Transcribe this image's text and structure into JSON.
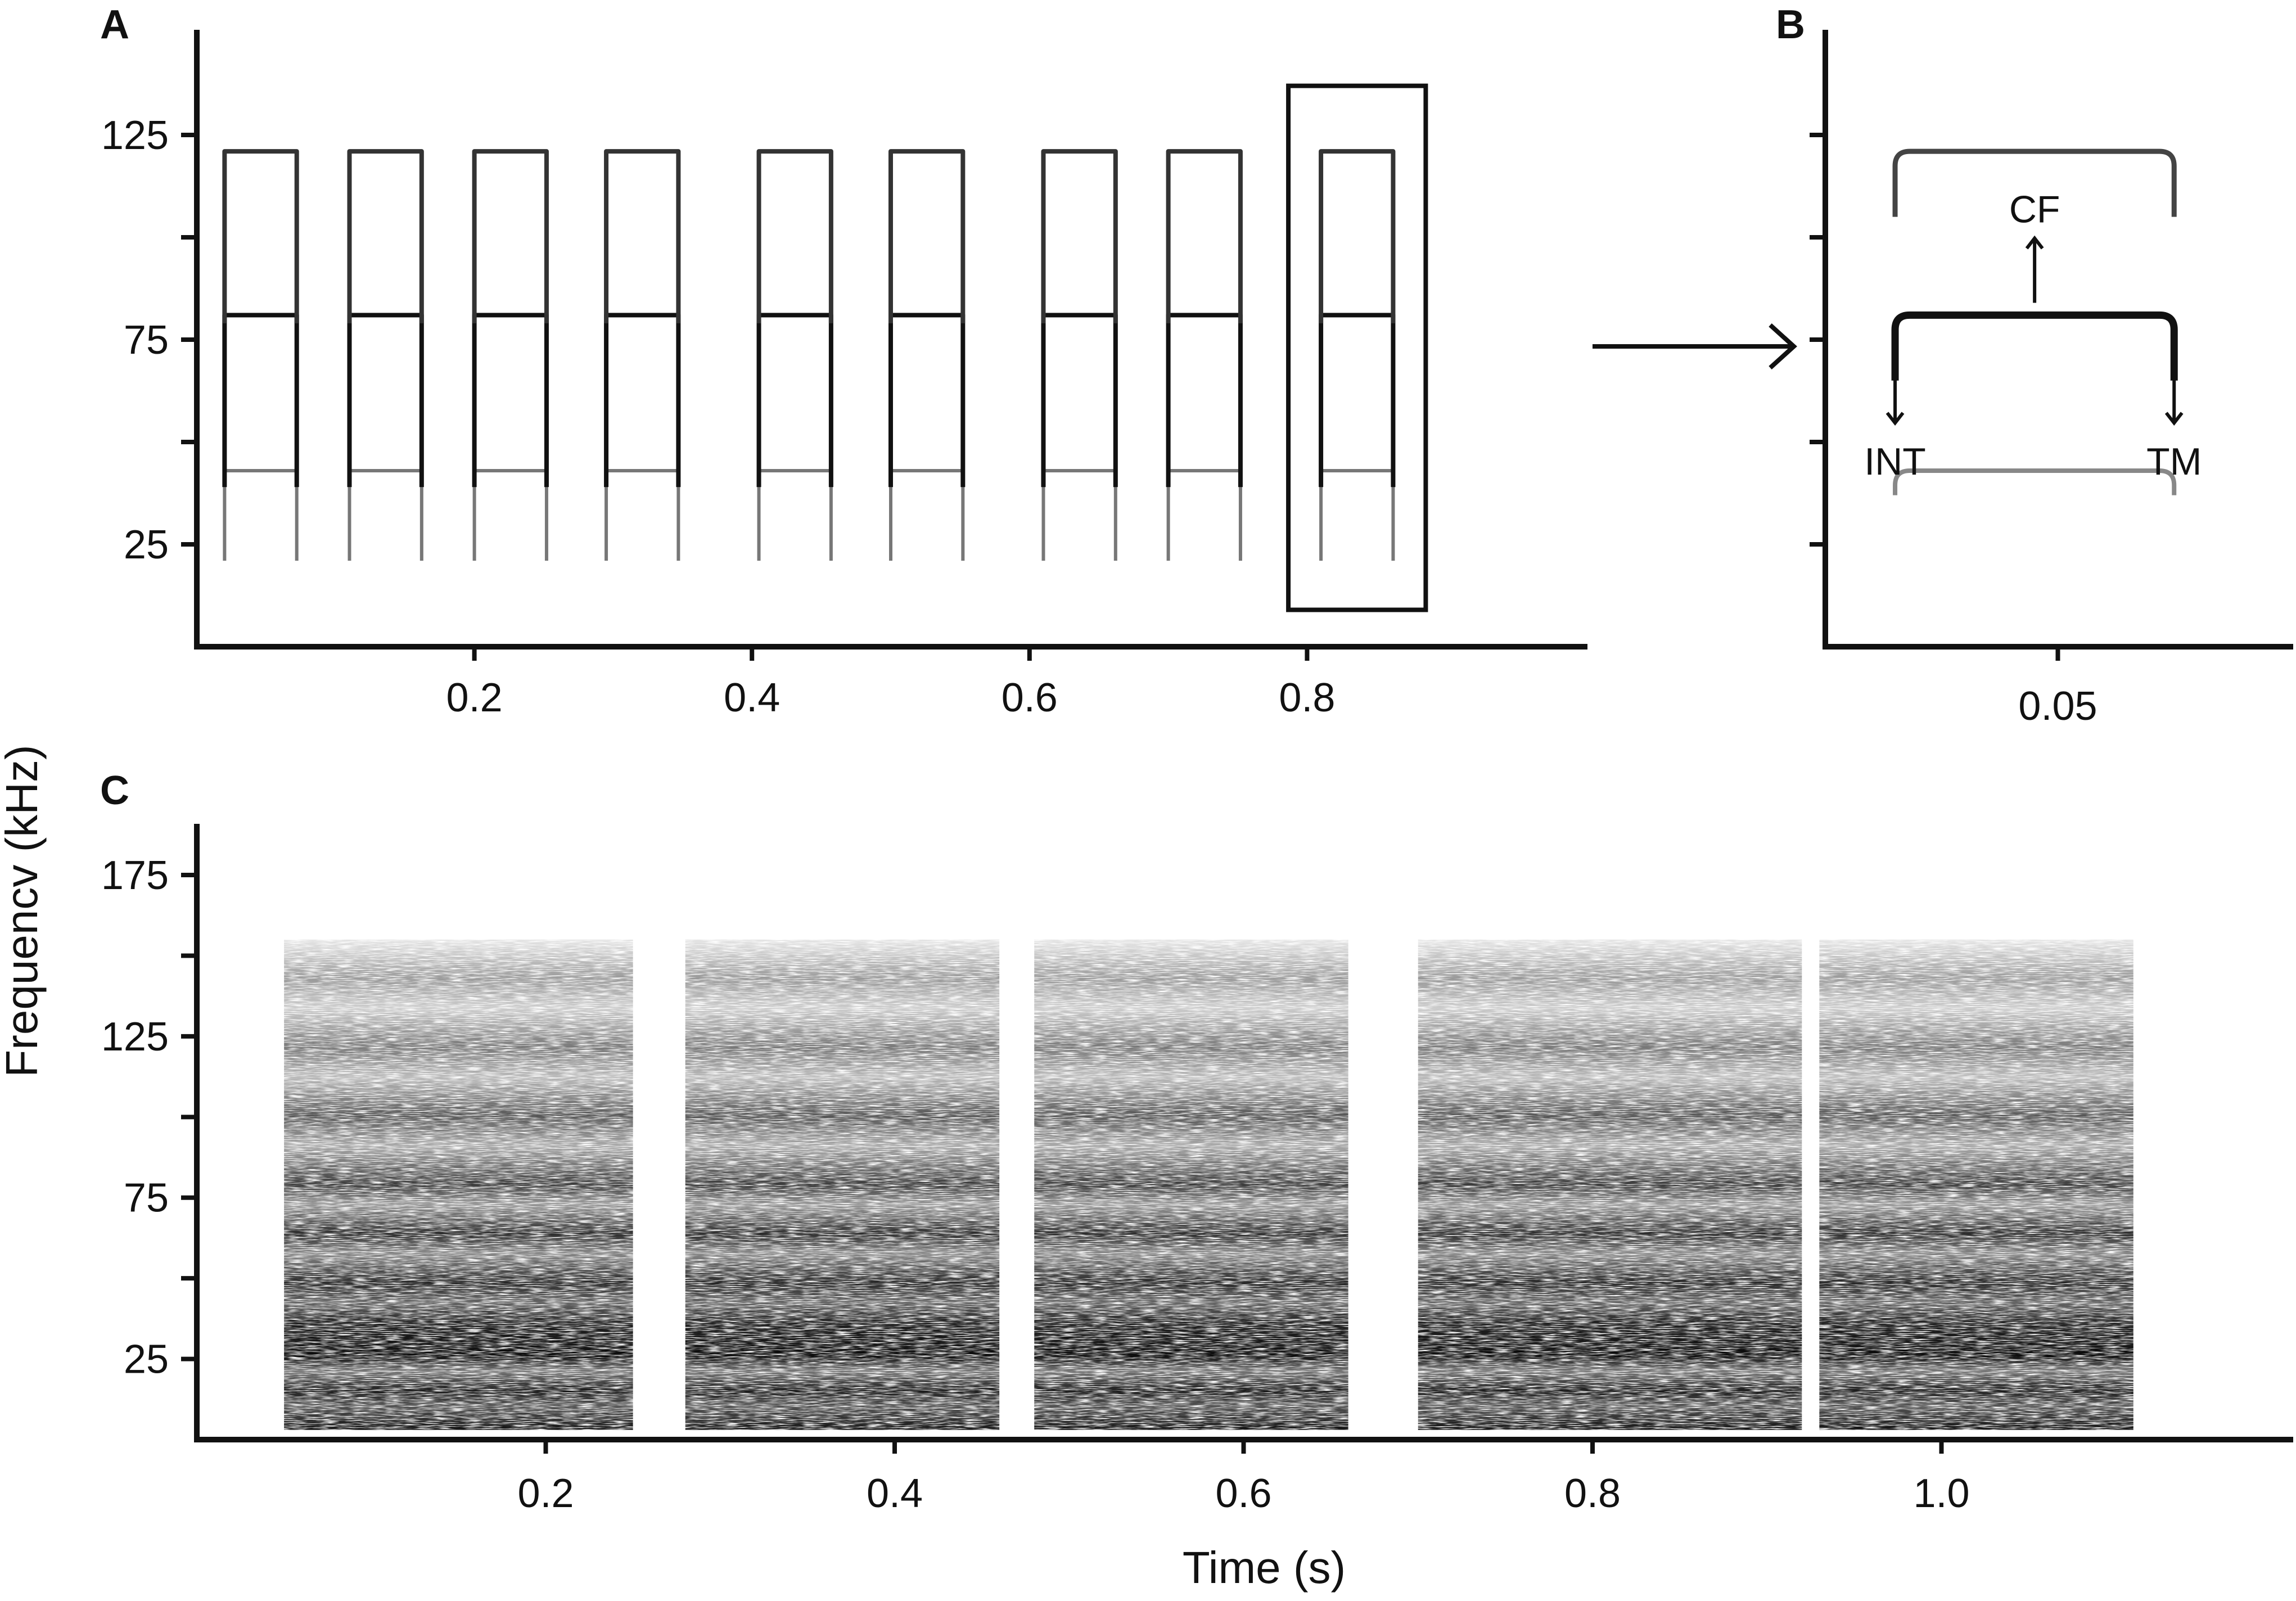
{
  "figure": {
    "shared_ylabel": "Frequencv (kHz)",
    "shared_xlabel": "Time (s)"
  },
  "chart_data": [
    {
      "panel": "A",
      "type": "spectrogram",
      "ylim": [
        0,
        150
      ],
      "yticks": [
        25,
        75,
        125
      ],
      "yminor": [
        50,
        100
      ],
      "ytick_labels": [
        "25",
        "75",
        "125"
      ],
      "xlim": [
        0,
        1.0
      ],
      "xticks": [
        0.2,
        0.4,
        0.6,
        0.8
      ],
      "xtick_labels": [
        "0.2",
        "0.4",
        "0.6",
        "0.8"
      ],
      "xlabel": "",
      "ylabel": "",
      "call_starts": [
        0.02,
        0.11,
        0.2,
        0.295,
        0.405,
        0.5,
        0.61,
        0.7,
        0.81
      ],
      "call_duration": 0.052,
      "harmonics_kHz": [
        43,
        81,
        121
      ],
      "highlighted_call_index": 8,
      "grid": false
    },
    {
      "panel": "B",
      "type": "spectrogram",
      "ylim": [
        0,
        150
      ],
      "yticks": [
        25,
        50,
        75,
        100,
        125
      ],
      "ytick_labels": [],
      "xlim": [
        0,
        0.1
      ],
      "xticks": [
        0.05
      ],
      "xtick_labels": [
        "0.05"
      ],
      "xlabel": "",
      "ylabel": "",
      "call_start": 0.015,
      "call_end": 0.075,
      "harmonics_kHz": [
        43,
        81,
        121
      ],
      "annotations": [
        {
          "label": "CF",
          "x": 0.045,
          "y": 94,
          "arrow": "up"
        },
        {
          "label": "INT",
          "x": 0.015,
          "y": 53,
          "arrow": "down"
        },
        {
          "label": "TM",
          "x": 0.075,
          "y": 53,
          "arrow": "down"
        }
      ],
      "grid": false
    },
    {
      "panel": "C",
      "type": "spectrogram",
      "ylim": [
        0,
        190
      ],
      "yticks": [
        25,
        75,
        125,
        175
      ],
      "yminor": [
        50,
        100,
        150
      ],
      "ytick_labels": [
        "25",
        "75",
        "125",
        "175"
      ],
      "xlim": [
        0,
        1.2
      ],
      "xticks": [
        0.2,
        0.4,
        0.6,
        0.8,
        1.0
      ],
      "xtick_labels": [
        "0.2",
        "0.4",
        "0.6",
        "0.8",
        "1.0"
      ],
      "xlabel": "Time (s)",
      "ylabel": "",
      "syllables": [
        [
          0.05,
          0.25
        ],
        [
          0.28,
          0.46
        ],
        [
          0.48,
          0.66
        ],
        [
          0.7,
          0.92
        ],
        [
          0.93,
          1.11
        ]
      ],
      "freq_range_kHz": [
        3,
        155
      ],
      "grid": false
    }
  ]
}
